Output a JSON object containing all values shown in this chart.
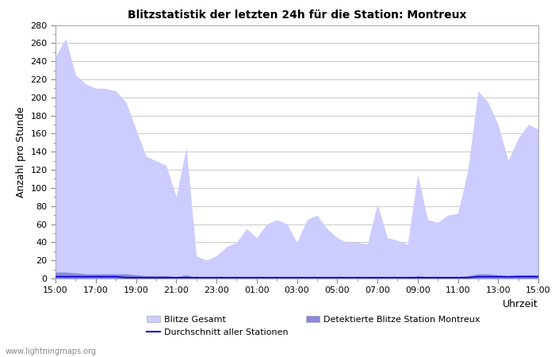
{
  "title": "Blitzstatistik der letzten 24h für die Station: Montreux",
  "xlabel": "Uhrzeit",
  "ylabel": "Anzahl pro Stunde",
  "watermark": "www.lightningmaps.org",
  "x_ticks": [
    "15:00",
    "17:00",
    "19:00",
    "21:00",
    "23:00",
    "01:00",
    "03:00",
    "05:00",
    "07:00",
    "09:00",
    "11:00",
    "13:00",
    "15:00"
  ],
  "ylim": [
    0,
    280
  ],
  "yticks": [
    0,
    20,
    40,
    60,
    80,
    100,
    120,
    140,
    160,
    180,
    200,
    220,
    240,
    260,
    280
  ],
  "color_gesamt": "#ccccff",
  "color_detektiert": "#8888dd",
  "color_avg": "#0000cc",
  "background_color": "#ffffff",
  "grid_color": "#cccccc",
  "gesamt": [
    245,
    265,
    225,
    215,
    210,
    210,
    207,
    195,
    165,
    135,
    130,
    125,
    90,
    145,
    25,
    20,
    25,
    35,
    40,
    55,
    45,
    60,
    65,
    60,
    40,
    65,
    70,
    55,
    45,
    40,
    40,
    38,
    82,
    45,
    42,
    38,
    115,
    65,
    62,
    70,
    72,
    120,
    207,
    195,
    170,
    130,
    155,
    170,
    165
  ],
  "detektiert": [
    7,
    7,
    6,
    5,
    5,
    5,
    5,
    5,
    4,
    3,
    3,
    3,
    2,
    4,
    1,
    1,
    1,
    1,
    1,
    1,
    1,
    1,
    1,
    1,
    1,
    1,
    1,
    1,
    1,
    1,
    1,
    1,
    2,
    1,
    1,
    1,
    3,
    2,
    2,
    2,
    2,
    3,
    5,
    5,
    4,
    3,
    4,
    4,
    4
  ],
  "avg": [
    2,
    2,
    2,
    2,
    2,
    2,
    2,
    1,
    1,
    1,
    1,
    1,
    1,
    1,
    1,
    1,
    1,
    1,
    1,
    1,
    1,
    1,
    1,
    1,
    1,
    1,
    1,
    1,
    1,
    1,
    1,
    1,
    1,
    1,
    1,
    1,
    1,
    1,
    1,
    1,
    1,
    1,
    2,
    2,
    2,
    2,
    2,
    2,
    2
  ],
  "legend_gesamt": "Blitze Gesamt",
  "legend_avg": "Durchschnitt aller Stationen",
  "legend_detektiert": "Detektierte Blitze Station Montreux"
}
